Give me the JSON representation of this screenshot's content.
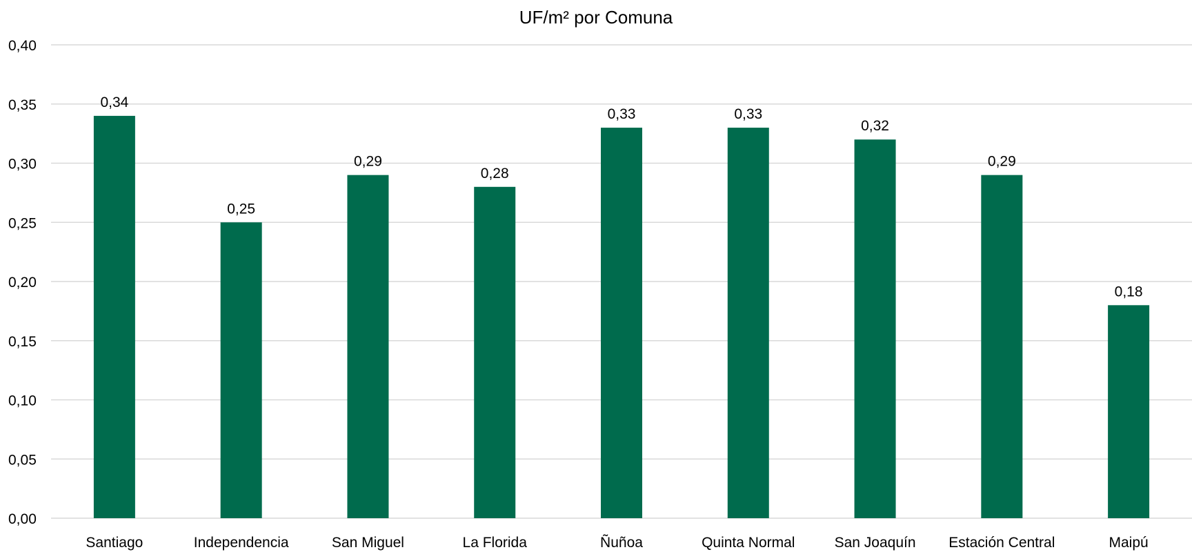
{
  "chart_data": {
    "type": "bar",
    "title": "UF/m² por Comuna",
    "xlabel": "",
    "ylabel": "",
    "categories": [
      "Santiago",
      "Independencia",
      "San Miguel",
      "La Florida",
      "Ñuñoa",
      "Quinta Normal",
      "San Joaquín",
      "Estación Central",
      "Maipú"
    ],
    "values": [
      0.34,
      0.25,
      0.29,
      0.28,
      0.33,
      0.33,
      0.32,
      0.29,
      0.18
    ],
    "value_labels": [
      "0,34",
      "0,25",
      "0,29",
      "0,28",
      "0,33",
      "0,33",
      "0,32",
      "0,29",
      "0,18"
    ],
    "ylim": [
      0,
      0.4
    ],
    "y_ticks": [
      0,
      0.05,
      0.1,
      0.15,
      0.2,
      0.25,
      0.3,
      0.35,
      0.4
    ],
    "y_tick_labels": [
      "0,00",
      "0,05",
      "0,10",
      "0,15",
      "0,20",
      "0,25",
      "0,30",
      "0,35",
      "0,40"
    ],
    "grid": true,
    "legend": "none",
    "bar_color": "#006B4D",
    "grid_color": "#d9d9d9"
  }
}
